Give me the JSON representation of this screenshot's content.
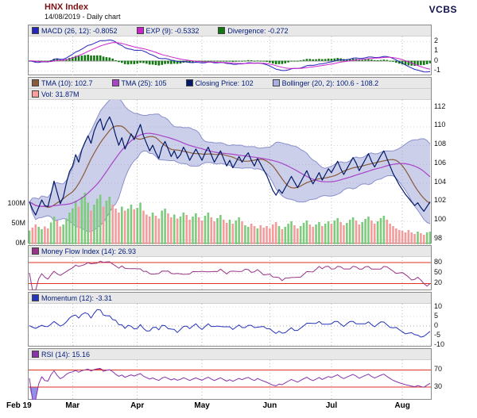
{
  "header": {
    "title": "HNX Index",
    "subtitle": "14/08/2019 - Daily chart",
    "brand": "VCBS"
  },
  "colors": {
    "title": "#7b1113",
    "legend_text": "#001a7a",
    "legend_bg": "#e8e8e8",
    "panel_border": "#8a8a8a",
    "grid": "#bcbcbc",
    "axis_text": "#111111",
    "threshold": "#e03322",
    "volume_up": "#7dcc7d",
    "volume_down": "#f49c9c",
    "bollinger_fill": "rgba(142,148,208,0.45)",
    "bollinger_edge": "#8a90cc",
    "rsi_over_fill": "#e43333",
    "rsi_under_fill": "#8585e8"
  },
  "chart_data": {
    "type": "line",
    "description": "Multi-panel daily stock chart: MACD, price with TMA/Bollinger/volume, Money Flow Index, Momentum, RSI",
    "x_axis": {
      "labels": [
        "Feb 19",
        "Mar",
        "Apr",
        "May",
        "Jun",
        "Jul",
        "Aug"
      ],
      "tick_indices": [
        0,
        14,
        35,
        56,
        78,
        98,
        121
      ],
      "n_points": 131
    },
    "macd_panel": {
      "legend": [
        {
          "label": "MACD (26, 12): -0.8052",
          "color": "#2626bb"
        },
        {
          "label": "EXP (9): -0.5332",
          "color": "#cc22cc"
        },
        {
          "label": "Divergence: -0.272",
          "color": "#117711"
        }
      ],
      "params": {
        "fast": 12,
        "slow": 26,
        "signal": 9
      },
      "yticks": [
        2,
        1,
        0,
        -1
      ],
      "ylim": [
        -1.5,
        2.5
      ]
    },
    "price_panel": {
      "legend": [
        {
          "label": "TMA (10): 102.7",
          "color": "#8a5a3a"
        },
        {
          "label": "TMA (25): 105",
          "color": "#a845c8"
        },
        {
          "label": "Closing Price: 102",
          "color": "#001a66"
        },
        {
          "label": "Bollinger (20, 2): 100.6 - 108.2",
          "color": "#aab0e0"
        }
      ],
      "legend_vol": [
        {
          "label": "Vol: 31.87M",
          "color": "#ff9c9c"
        }
      ],
      "yticks": [
        112,
        110,
        108,
        106,
        104,
        102,
        100,
        98
      ],
      "ylim": [
        97.5,
        112.8
      ],
      "vol_yticks": [
        {
          "label": "100M",
          "value": 100
        },
        {
          "label": "50M",
          "value": 50
        },
        {
          "label": "0M",
          "value": 0
        }
      ],
      "close": [
        102.0,
        101.2,
        100.6,
        101.4,
        102.2,
        101.6,
        101.5,
        102.8,
        104.2,
        103.0,
        101.8,
        102.5,
        104.0,
        105.2,
        105.8,
        107.0,
        106.2,
        107.5,
        108.3,
        109.0,
        108.2,
        109.5,
        110.3,
        110.8,
        109.6,
        110.4,
        111.0,
        110.2,
        109.0,
        108.0,
        108.8,
        107.6,
        108.4,
        109.2,
        108.6,
        109.4,
        110.2,
        109.0,
        108.2,
        107.4,
        108.0,
        107.2,
        106.6,
        107.8,
        108.4,
        107.6,
        106.8,
        107.4,
        106.6,
        107.0,
        107.8,
        107.2,
        106.4,
        107.0,
        107.6,
        107.0,
        106.4,
        107.2,
        107.8,
        107.0,
        106.2,
        106.8,
        107.4,
        106.6,
        105.8,
        106.4,
        105.6,
        106.2,
        106.8,
        106.2,
        106.8,
        107.2,
        106.4,
        105.8,
        106.6,
        106.0,
        105.4,
        104.8,
        104.0,
        103.2,
        102.7,
        103.3,
        102.9,
        103.5,
        104.1,
        104.7,
        104.1,
        103.5,
        104.1,
        104.7,
        105.3,
        104.5,
        103.9,
        104.5,
        105.1,
        104.3,
        104.9,
        105.5,
        105.1,
        105.7,
        106.3,
        105.5,
        104.9,
        105.5,
        106.1,
        106.7,
        106.1,
        105.3,
        105.9,
        106.5,
        107.1,
        106.3,
        105.7,
        106.3,
        106.9,
        107.4,
        106.6,
        105.8,
        105.0,
        104.4,
        103.8,
        103.3,
        102.8,
        102.4,
        102.0,
        101.6,
        101.9,
        101.4,
        101.0,
        101.5,
        102.0
      ],
      "volume": [
        35,
        42,
        50,
        44,
        38,
        45,
        40,
        55,
        70,
        60,
        45,
        50,
        65,
        80,
        90,
        110,
        95,
        120,
        130,
        105,
        85,
        100,
        115,
        125,
        95,
        110,
        120,
        100,
        90,
        80,
        95,
        85,
        90,
        100,
        88,
        92,
        105,
        85,
        75,
        70,
        80,
        72,
        65,
        85,
        90,
        78,
        68,
        75,
        65,
        70,
        80,
        74,
        62,
        70,
        78,
        68,
        60,
        72,
        80,
        68,
        58,
        66,
        74,
        62,
        54,
        62,
        52,
        60,
        68,
        58,
        48,
        44,
        52,
        46,
        40,
        48,
        42,
        46,
        40,
        50,
        56,
        46,
        38,
        44,
        52,
        58,
        48,
        40,
        46,
        54,
        60,
        50,
        44,
        50,
        56,
        46,
        52,
        58,
        52,
        60,
        66,
        56,
        48,
        54,
        62,
        68,
        60,
        50,
        56,
        64,
        70,
        60,
        52,
        58,
        66,
        72,
        62,
        52,
        46,
        40,
        36,
        34,
        30,
        36,
        30,
        26,
        32,
        28,
        24,
        30,
        31.87
      ]
    },
    "mfi_panel": {
      "legend": [
        {
          "label": "Money Flow Index (14): 26.93",
          "color": "#993388"
        }
      ],
      "period": 14,
      "yticks": [
        80,
        50,
        20
      ],
      "ylim": [
        0,
        95
      ],
      "thresholds": [
        80,
        20
      ]
    },
    "momentum_panel": {
      "legend": [
        {
          "label": "Momentum (12): -3.31",
          "color": "#2633bb"
        }
      ],
      "period": 12,
      "yticks": [
        10,
        5,
        0,
        -5,
        -10
      ],
      "ylim": [
        -11,
        11.5
      ]
    },
    "rsi_panel": {
      "legend": [
        {
          "label": "RSI (14): 15.16",
          "color": "#8833aa"
        }
      ],
      "period": 14,
      "yticks": [
        70,
        30
      ],
      "ylim": [
        0,
        92
      ],
      "thresholds": [
        70,
        30
      ]
    }
  }
}
